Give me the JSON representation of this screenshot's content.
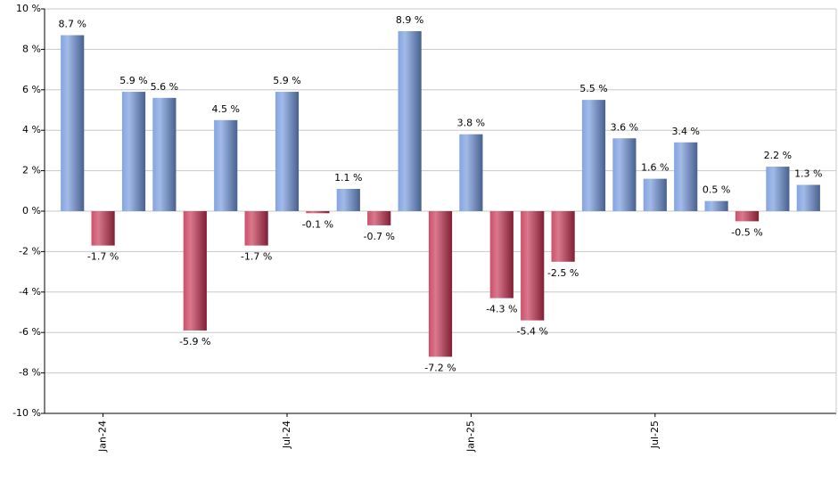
{
  "chart_data": {
    "type": "bar",
    "categories": [
      null,
      "Jan-24",
      null,
      null,
      null,
      null,
      null,
      "Jul-24",
      null,
      null,
      null,
      null,
      null,
      "Jan-25",
      null,
      null,
      null,
      null,
      null,
      "Jul-25",
      null,
      null,
      null,
      null,
      null
    ],
    "values": [
      8.7,
      -1.7,
      5.9,
      5.6,
      -5.9,
      4.5,
      -1.7,
      5.9,
      -0.1,
      1.1,
      -0.7,
      8.9,
      -7.2,
      3.8,
      -4.3,
      -5.4,
      -2.5,
      5.5,
      3.6,
      1.6,
      3.4,
      0.5,
      -0.5,
      2.2,
      1.3
    ],
    "value_labels": [
      "8.7 %",
      "-1.7 %",
      "5.9 %",
      "5.6 %",
      "-5.9 %",
      "4.5 %",
      "-1.7 %",
      "5.9 %",
      "-0.1 %",
      "1.1 %",
      "-0.7 %",
      "8.9 %",
      "-7.2 %",
      "3.8 %",
      "-4.3 %",
      "-5.4 %",
      "-2.5 %",
      "5.5 %",
      "3.6 %",
      "1.6 %",
      "3.4 %",
      "0.5 %",
      "-0.5 %",
      "2.2 %",
      "1.3 %"
    ],
    "positive_color": "#6f95dc",
    "negative_color": "#c5304f",
    "ylim": [
      -10,
      10
    ],
    "yticks": [
      {
        "value": -10,
        "label": "-10 %"
      },
      {
        "value": -8,
        "label": "-8 %"
      },
      {
        "value": -6,
        "label": "-6 %"
      },
      {
        "value": -4,
        "label": "-4 %"
      },
      {
        "value": -2,
        "label": "-2 %"
      },
      {
        "value": 0,
        "label": "0 %"
      },
      {
        "value": 2,
        "label": "2 %"
      },
      {
        "value": 4,
        "label": "4 %"
      },
      {
        "value": 6,
        "label": "6 %"
      },
      {
        "value": 8,
        "label": "8 %"
      },
      {
        "value": 10,
        "label": "10 %"
      }
    ],
    "grid": true
  }
}
